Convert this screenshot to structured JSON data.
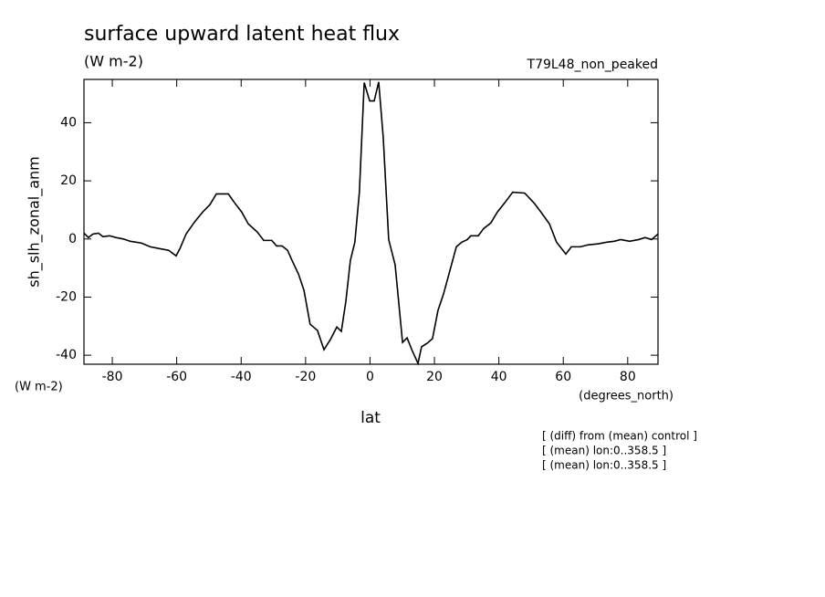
{
  "chart_data": {
    "type": "line",
    "title": "surface upward latent heat flux",
    "subtitle": "(W m-2)",
    "dataset": "T79L48_non_peaked",
    "y_label": "sh_slh_zonal_anm",
    "y_units": "(W m-2)",
    "x_label": "lat",
    "x_units": "(degrees_north)",
    "notes": [
      "[ (diff) from (mean) control ]",
      "[ (mean) lon:0..358.5 ]",
      "[ (mean) lon:0..358.5 ]"
    ],
    "xlim": [
      -88.8,
      89.4
    ],
    "xticks": [
      -80,
      -60,
      -40,
      -20,
      0,
      20,
      40,
      60,
      80
    ],
    "ylim": [
      -43.1,
      54.9
    ],
    "yticks": [
      -40,
      -20,
      0,
      20,
      40
    ],
    "x": [
      -88.8,
      -87.4,
      -86,
      -84.3,
      -82.9,
      -80.9,
      -78.9,
      -76.6,
      -74.4,
      -71,
      -68.2,
      -65.4,
      -62.5,
      -60.2,
      -59,
      -57.1,
      -54.5,
      -52,
      -49.7,
      -47.7,
      -44,
      -42,
      -39.8,
      -37.8,
      -35,
      -33,
      -30.5,
      -29,
      -27.3,
      -25.6,
      -24.2,
      -22.2,
      -20.5,
      -18.6,
      -16.3,
      -14.3,
      -12.3,
      -10.3,
      -8.9,
      -7.5,
      -6.1,
      -4.7,
      -3.3,
      -1.8,
      -0.1,
      1.3,
      2.7,
      4.1,
      5.8,
      7.8,
      10.1,
      11.5,
      13.2,
      14.9,
      16,
      17.7,
      19.4,
      21.1,
      22.8,
      24.5,
      26.8,
      28.5,
      30.2,
      31.3,
      33.6,
      35.3,
      37.5,
      39.5,
      41.8,
      44.3,
      48,
      50.9,
      53.1,
      55.7,
      57.9,
      60.8,
      62.5,
      65.3,
      67.8,
      70.7,
      73.5,
      75.8,
      77.8,
      80.6,
      83.4,
      85.4,
      87.4,
      89.4
    ],
    "series": [
      {
        "name": "sh_slh_zonal_anm",
        "color": "#000000",
        "values": [
          2,
          0.5,
          1.7,
          2,
          0.8,
          1.1,
          0.5,
          0,
          -0.8,
          -1.4,
          -2.7,
          -3.3,
          -3.9,
          -5.8,
          -3.3,
          1.7,
          5.8,
          9.2,
          11.8,
          15.5,
          15.5,
          12.4,
          9.2,
          5.2,
          2.4,
          -0.5,
          -0.5,
          -2.4,
          -2.4,
          -3.9,
          -7.4,
          -12.1,
          -17.7,
          -29.3,
          -31.5,
          -38.1,
          -34.6,
          -30.3,
          -31.8,
          -21.5,
          -7.4,
          -1.1,
          16.1,
          53.8,
          47.5,
          47.5,
          54,
          35,
          -0.2,
          -8.9,
          -35.6,
          -34,
          -38.7,
          -42.8,
          -37.1,
          -35.9,
          -34.3,
          -24.6,
          -19,
          -12.1,
          -2.7,
          -1.1,
          -0.2,
          1.1,
          1.1,
          3.6,
          5.5,
          9.2,
          12.4,
          16.1,
          15.8,
          12.4,
          9.2,
          5.2,
          -1.1,
          -5.2,
          -2.7,
          -2.7,
          -2,
          -1.7,
          -1.1,
          -0.8,
          -0.2,
          -0.8,
          -0.2,
          0.5,
          -0.2,
          1.7
        ]
      }
    ]
  }
}
